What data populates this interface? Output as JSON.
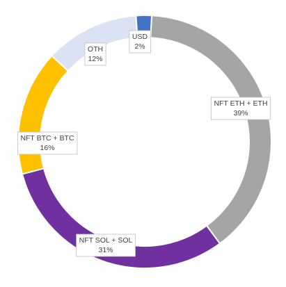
{
  "chart_data": {
    "type": "pie",
    "subtype": "donut",
    "title": "",
    "legend": "none",
    "slices": [
      {
        "name": "USD",
        "percent_label": "2%",
        "value": 2,
        "color": "#4472c4"
      },
      {
        "name": "NFT ETH + ETH",
        "percent_label": "39%",
        "value": 39,
        "color": "#a5a5a5"
      },
      {
        "name": "NFT SOL + SOL",
        "percent_label": "31%",
        "value": 31,
        "color": "#7030a0"
      },
      {
        "name": "NFT BTC + BTC",
        "percent_label": "16%",
        "value": 16,
        "color": "#ffc000"
      },
      {
        "name": "OTH",
        "percent_label": "12%",
        "value": 12,
        "color": "#dae3f3"
      }
    ]
  }
}
